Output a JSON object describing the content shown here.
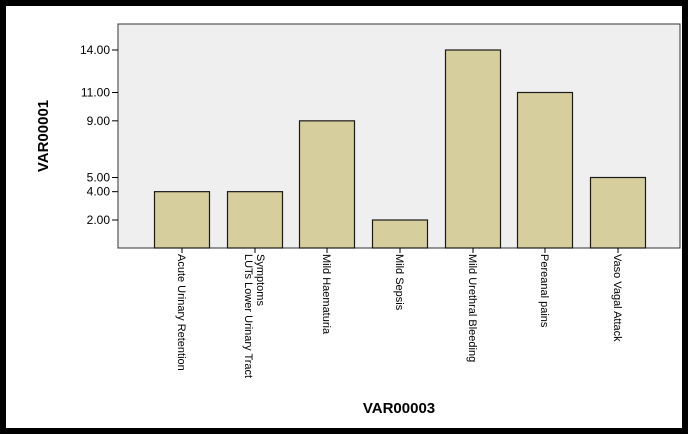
{
  "chart_data": {
    "type": "bar",
    "title": "",
    "xlabel": "VAR00003",
    "ylabel": "VAR00001",
    "categories": [
      "Acute Urinary Retention",
      "LUTs Lower Urinary Tract Symptoms",
      "Mild Haematuria",
      "Mild Sepsis",
      "Mild Urethral Bleeding",
      "Pereanal pains",
      "Vaso Vagal Attack"
    ],
    "category_lines": [
      [
        "Acute Urinary Retention"
      ],
      [
        "LUTs Lower Urinary Tract",
        "Symptoms"
      ],
      [
        "Mild Haematuria"
      ],
      [
        "Mild Sepsis"
      ],
      [
        "Mild Urethral Bleeding"
      ],
      [
        "Pereanal pains"
      ],
      [
        "Vaso Vagal Attack"
      ]
    ],
    "values": [
      4.0,
      4.0,
      9.0,
      2.0,
      14.0,
      11.0,
      5.0
    ],
    "yticks": [
      2.0,
      4.0,
      5.0,
      9.0,
      11.0,
      14.0
    ],
    "ytick_labels": [
      "2.00",
      "4.00",
      "5.00",
      "9.00",
      "11.00",
      "14.00"
    ],
    "grid": false,
    "colors": {
      "bar_fill": "#d6ce9c",
      "bar_stroke": "#1a1a1a",
      "plot_bg": "#efefef",
      "frame": "#000000"
    }
  }
}
